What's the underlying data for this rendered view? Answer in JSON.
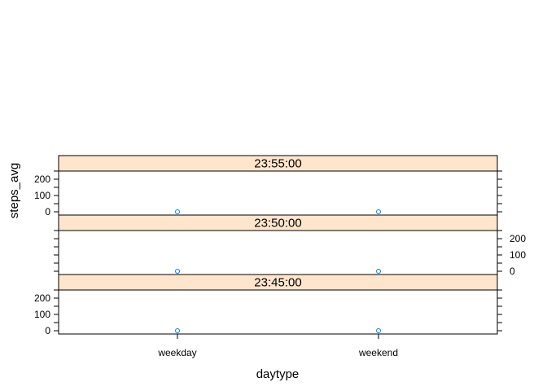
{
  "chart_data": {
    "type": "scatter",
    "xlabel": "daytype",
    "ylabel": "steps_avg",
    "categories": [
      "weekday",
      "weekend"
    ],
    "y_ticks": [
      0,
      100,
      200
    ],
    "ylim": [
      -20,
      250
    ],
    "strip_color": "#ffe5cc",
    "point_color": "#0080ff",
    "panels": [
      {
        "label": "23:55:00",
        "values": [
          0,
          0
        ],
        "left_axis": true,
        "right_axis": false
      },
      {
        "label": "23:50:00",
        "values": [
          0,
          0
        ],
        "left_axis": false,
        "right_axis": true
      },
      {
        "label": "23:45:00",
        "values": [
          0,
          0
        ],
        "left_axis": true,
        "right_axis": false
      }
    ]
  }
}
